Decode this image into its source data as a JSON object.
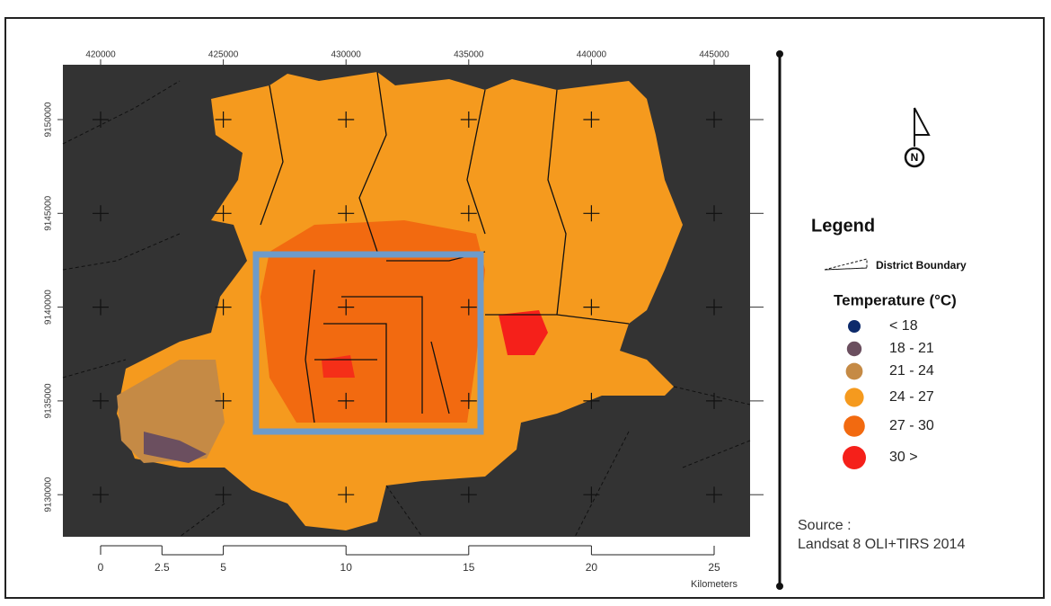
{
  "map": {
    "top_coords": [
      420000,
      425000,
      430000,
      435000,
      440000,
      445000
    ],
    "left_coords": [
      9150000,
      9145000,
      9140000,
      9135000,
      9130000
    ],
    "scale": {
      "ticks": [
        0,
        2.5,
        5,
        10,
        15,
        20,
        25
      ],
      "unit": "Kilometers"
    },
    "north": "N"
  },
  "legend": {
    "title": "Legend",
    "boundary": "District Boundary",
    "temperature_title": "Temperature (°C)",
    "items": [
      {
        "label": "< 18",
        "color": "#0d2a6b"
      },
      {
        "label": "18 - 21",
        "color": "#6b4f5f"
      },
      {
        "label": "21 - 24",
        "color": "#c58a45"
      },
      {
        "label": "24 - 27",
        "color": "#f59a1e"
      },
      {
        "label": "27 - 30",
        "color": "#f26a10"
      },
      {
        "label": "30 >",
        "color": "#f5201a"
      }
    ]
  },
  "source": {
    "label": "Source :",
    "text": "Landsat 8 OLI+TIRS 2014"
  }
}
